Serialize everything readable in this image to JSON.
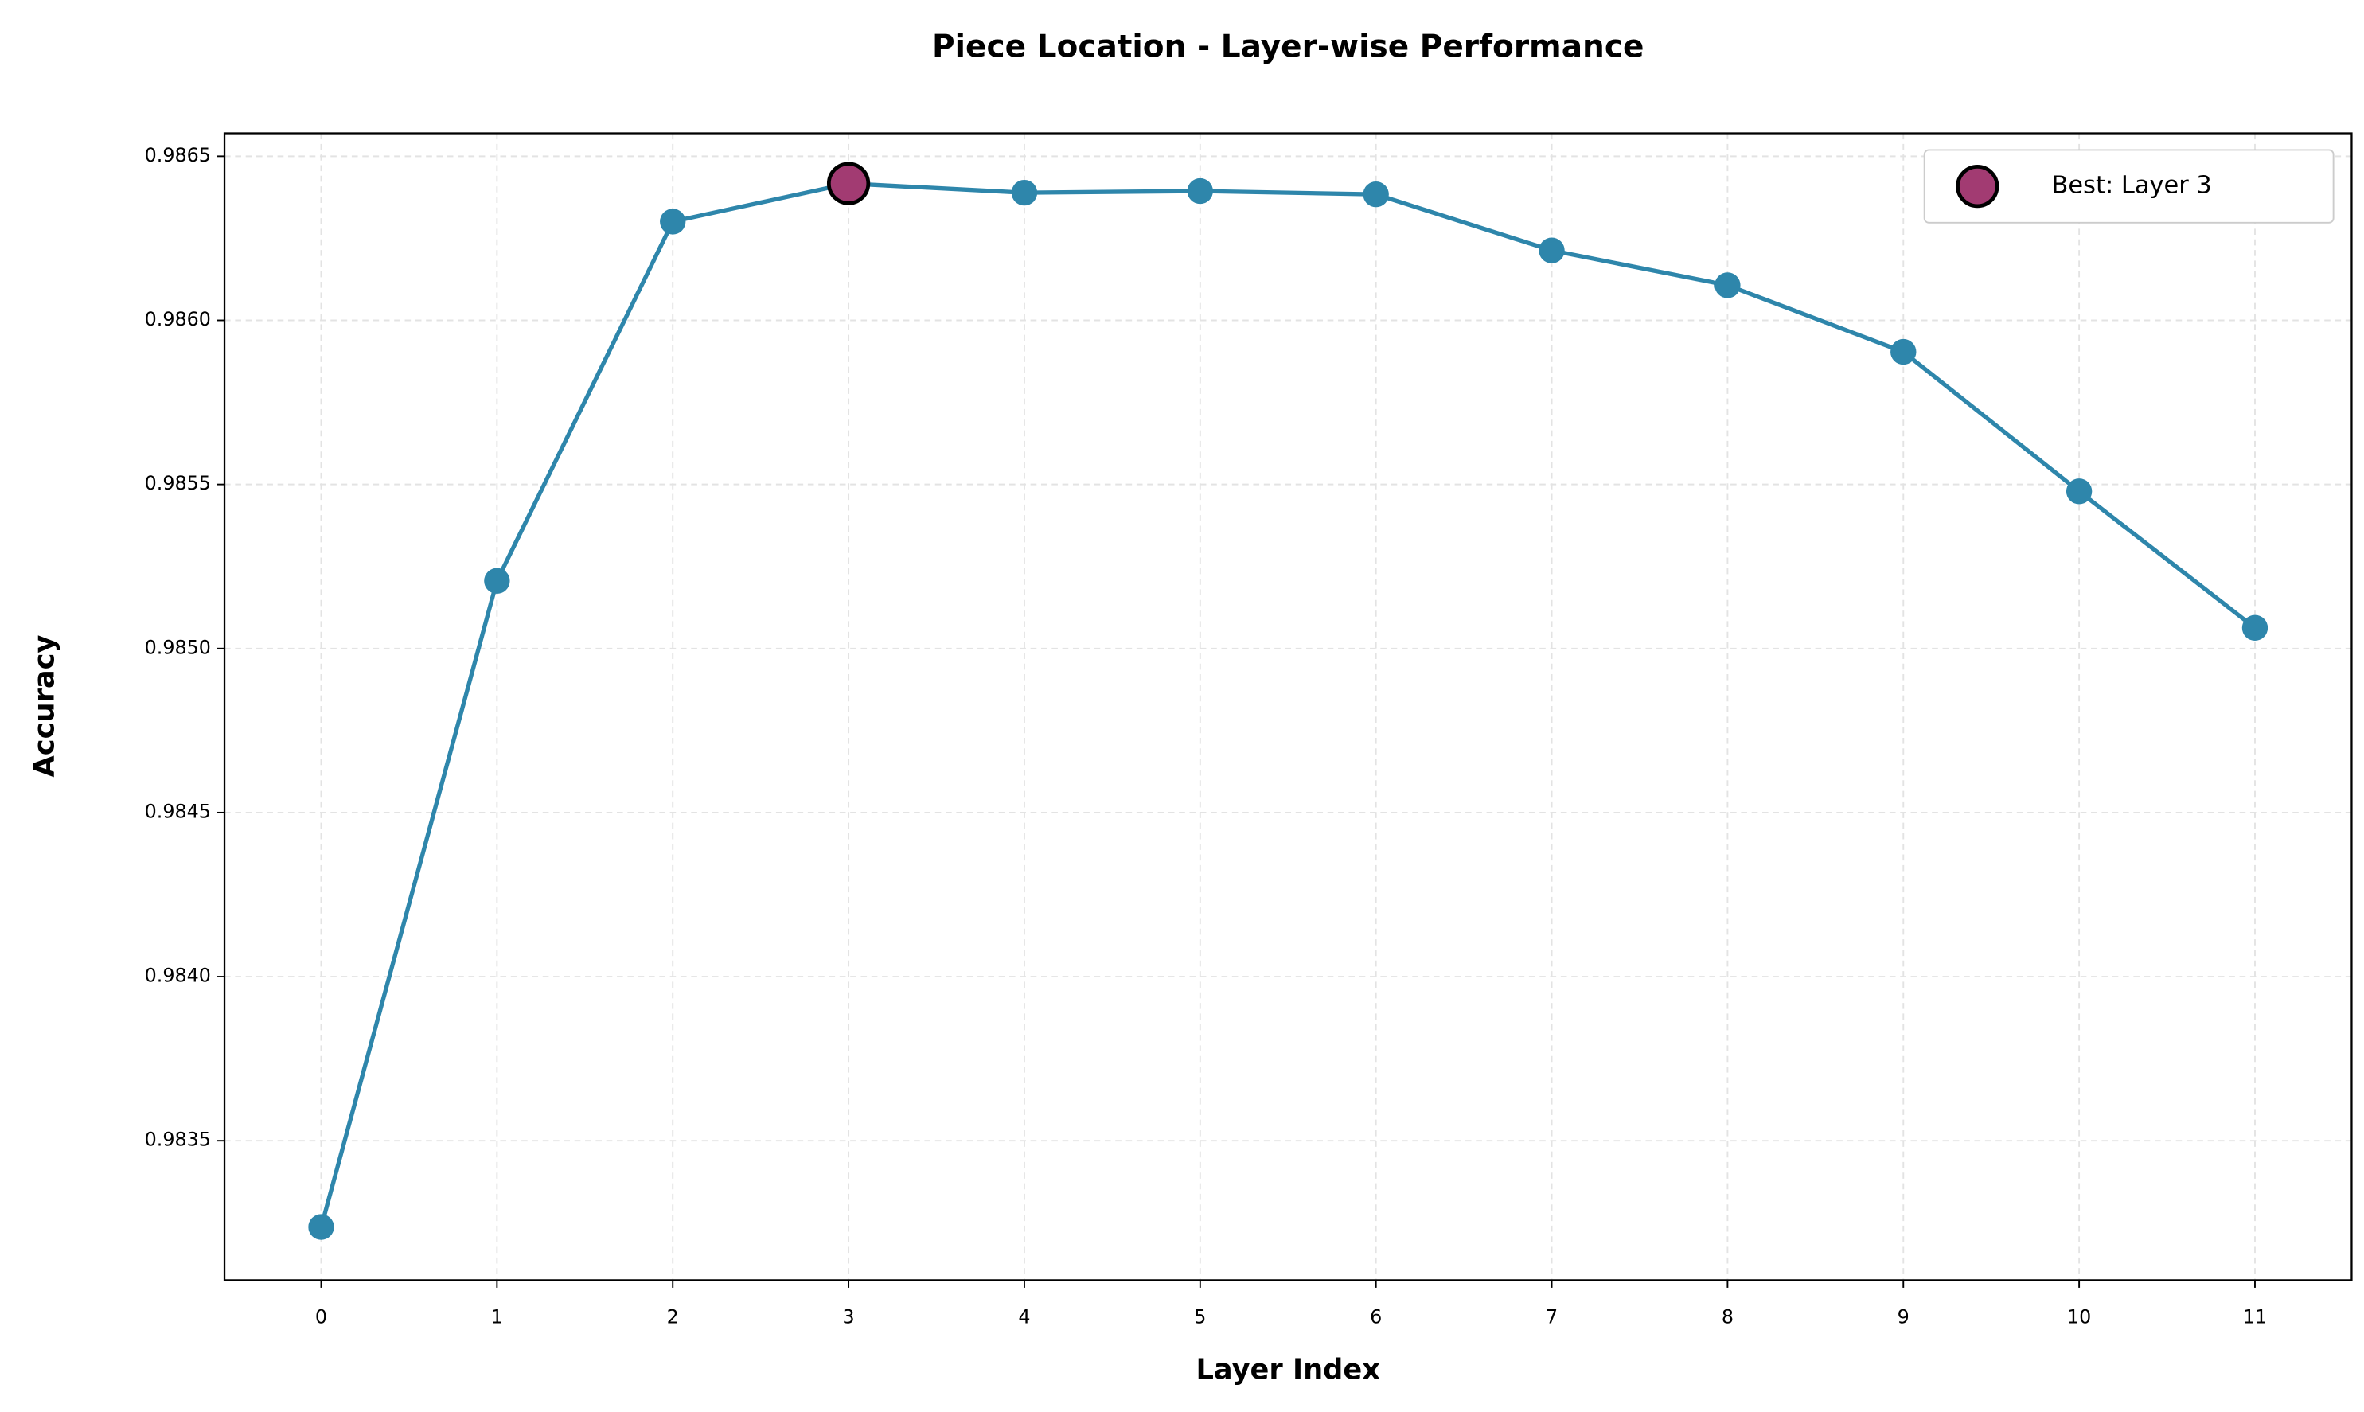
{
  "chart_data": {
    "type": "line",
    "title": "Piece Location - Layer-wise Performance",
    "x_label": "Layer Index",
    "y_label": "Accuracy",
    "x": [
      0,
      1,
      2,
      3,
      4,
      5,
      6,
      7,
      8,
      9,
      10,
      11
    ],
    "values": [
      0.983237,
      0.985206,
      0.986301,
      0.986417,
      0.986389,
      0.986394,
      0.986384,
      0.986213,
      0.986107,
      0.985904,
      0.985479,
      0.985063
    ],
    "color": "#2e86ab",
    "xlim": [
      -0.55,
      11.55
    ],
    "xticks": [
      0,
      1,
      2,
      3,
      4,
      5,
      6,
      7,
      8,
      9,
      10,
      11
    ],
    "ylim": [
      0.983075,
      0.98657
    ],
    "yticks": [
      0.9835,
      {
        "value": 0.984,
        "label": "0.9840"
      },
      0.9845,
      {
        "value": 0.985,
        "label": "0.9850"
      },
      0.9855,
      {
        "value": 0.986,
        "label": "0.9860"
      },
      0.9865
    ],
    "grid": true,
    "highlight": {
      "label": "Best: Layer 3",
      "index": 3,
      "color": "#a23b72"
    },
    "legend": "upper right"
  }
}
